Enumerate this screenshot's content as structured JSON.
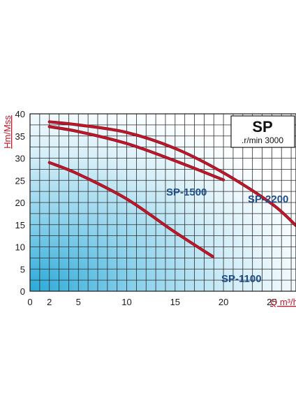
{
  "chart_data": {
    "type": "line",
    "title": "SP",
    "subtitle": ".r/min 3000",
    "xlabel": "Q m³/h",
    "ylabel": "Hm/Mss",
    "xticks": [
      0,
      2,
      5,
      10,
      15,
      20,
      25
    ],
    "yticks": [
      0,
      5,
      10,
      15,
      20,
      25,
      30,
      35,
      40
    ],
    "xlim": [
      0,
      27.5
    ],
    "ylim": [
      0,
      40
    ],
    "grid": true,
    "legend": "inline labels",
    "colors": {
      "curve": "#c0182b",
      "label": "#1f4e8c",
      "axis_title": "#c0182b"
    },
    "series": [
      {
        "name": "SP-1100",
        "x": [
          2,
          5,
          10,
          15,
          18.9
        ],
        "y": [
          29,
          26.4,
          20.8,
          13.3,
          7.8
        ]
      },
      {
        "name": "SP-1500",
        "x": [
          2,
          5,
          10,
          15,
          20
        ],
        "y": [
          37.1,
          36,
          33.3,
          29.4,
          25.1
        ]
      },
      {
        "name": "SP-2200",
        "x": [
          2,
          5,
          10,
          15,
          20,
          25,
          27.5
        ],
        "y": [
          38.2,
          37.5,
          35.8,
          32.2,
          26.7,
          19.7,
          14.8
        ]
      }
    ]
  }
}
